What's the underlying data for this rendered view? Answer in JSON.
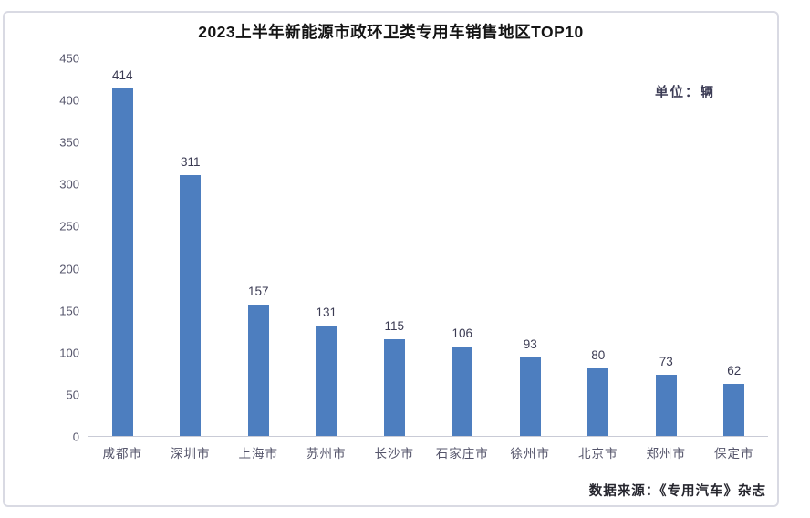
{
  "chart_data": {
    "type": "bar",
    "title": "2023上半年新能源市政环卫类专用车销售地区TOP10",
    "unit_label": "单位：辆",
    "categories": [
      "成都市",
      "深圳市",
      "上海市",
      "苏州市",
      "长沙市",
      "石家庄市",
      "徐州市",
      "北京市",
      "郑州市",
      "保定市"
    ],
    "values": [
      414,
      311,
      157,
      131,
      115,
      106,
      93,
      80,
      73,
      62
    ],
    "ylim": [
      0,
      450
    ],
    "yticks": [
      0,
      50,
      100,
      150,
      200,
      250,
      300,
      350,
      400,
      450
    ],
    "grid": false,
    "legend": "none",
    "data_labels": true,
    "bar_color": "#4d7ebf",
    "source": "数据来源：《专用汽车》杂志"
  }
}
